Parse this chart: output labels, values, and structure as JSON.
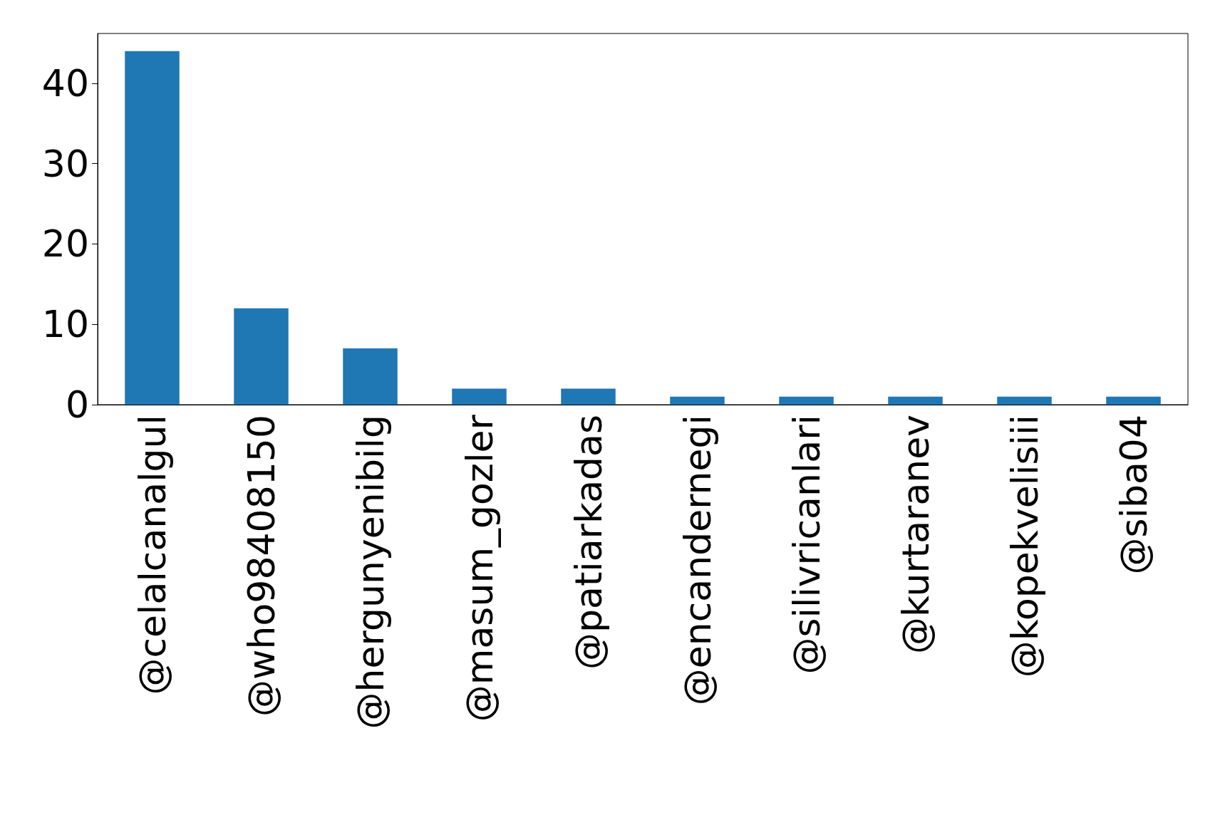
{
  "chart_data": {
    "type": "bar",
    "categories": [
      "@celalcanalgul",
      "@who98408150",
      "@hergunyenibilg",
      "@masum_gozler",
      "@patiarkadas",
      "@encandernegi",
      "@silivricanlari",
      "@kurtaranev",
      "@kopekvelisiii",
      "@siba04"
    ],
    "values": [
      44,
      12,
      7,
      2,
      2,
      1,
      1,
      1,
      1,
      1
    ],
    "color": "#1f77b4",
    "ylim": [
      0,
      46.2
    ],
    "yticks": [
      0,
      10,
      20,
      30,
      40
    ],
    "grid": false
  }
}
